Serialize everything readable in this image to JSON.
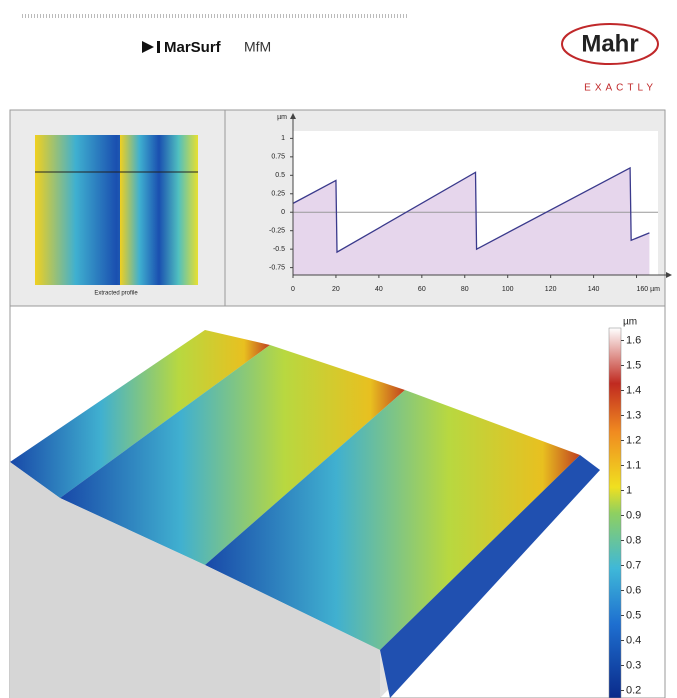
{
  "header": {
    "product": "MarSurf",
    "product_suffix": "MfM",
    "brand": "Mahr",
    "tagline": "EXACTLY"
  },
  "thumbnail_caption": "Extracted profile",
  "chart_data": [
    {
      "type": "line",
      "y_label": "µm",
      "x": [
        0,
        20,
        20.5,
        85,
        85.5,
        157,
        157.5,
        166
      ],
      "series": [
        {
          "color": "#3a3a8c",
          "fill": "#e6d6ec",
          "values": [
            0.12,
            0.43,
            -0.54,
            0.54,
            -0.5,
            0.6,
            -0.38,
            -0.28
          ]
        }
      ],
      "xlim": [
        0,
        170
      ],
      "ylim": [
        -0.85,
        1.1
      ],
      "xticks": [
        0,
        20,
        40,
        60,
        80,
        100,
        120,
        140,
        {
          "value": 160,
          "label": "160 µm"
        }
      ],
      "yticks": [
        -0.75,
        -0.5,
        -0.25,
        0,
        0.25,
        0.5,
        0.75,
        1
      ]
    },
    {
      "type": "colorbar",
      "label": "µm",
      "clim": [
        0.15,
        1.65
      ],
      "ticks": [
        0.2,
        0.3,
        0.4,
        0.5,
        0.6,
        0.7,
        0.8,
        0.9,
        1,
        1.1,
        1.2,
        1.3,
        1.4,
        1.5,
        1.6
      ]
    }
  ]
}
